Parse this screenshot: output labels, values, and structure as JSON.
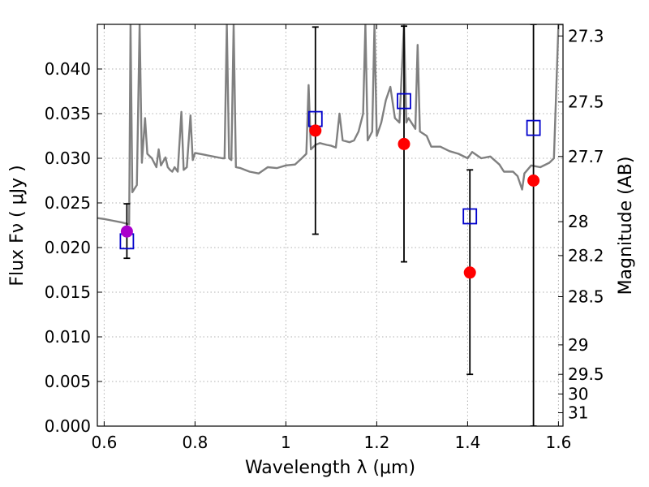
{
  "chart_data": {
    "type": "scatter",
    "xlabel": "Wavelength  λ (μm)",
    "ylabel": "Flux  Fν  ( μJy )",
    "y2label": "Magnitude (AB)",
    "xlim": [
      0.585,
      1.61
    ],
    "ylim": [
      0.0,
      0.045
    ],
    "grid": true,
    "x_ticks": [
      0.6,
      0.8,
      1.0,
      1.2,
      1.4,
      1.6
    ],
    "x_tick_labels": [
      "0.6",
      "0.8",
      "1",
      "1.2",
      "1.4",
      "1.6"
    ],
    "y_ticks": [
      0.0,
      0.005,
      0.01,
      0.015,
      0.02,
      0.025,
      0.03,
      0.035,
      0.04
    ],
    "y_tick_labels": [
      "0.000",
      "0.005",
      "0.010",
      "0.015",
      "0.020",
      "0.025",
      "0.030",
      "0.035",
      "0.040"
    ],
    "mag_ticks": [
      {
        "label": "27.3",
        "flux": 0.0437
      },
      {
        "label": "27.5",
        "flux": 0.0363
      },
      {
        "label": "27.7",
        "flux": 0.0302
      },
      {
        "label": "28",
        "flux": 0.0229
      },
      {
        "label": "28.2",
        "flux": 0.0191
      },
      {
        "label": "28.5",
        "flux": 0.0145
      },
      {
        "label": "29",
        "flux": 0.0091
      },
      {
        "label": "29.5",
        "flux": 0.0058
      },
      {
        "label": "30",
        "flux": 0.0036
      },
      {
        "label": "31",
        "flux": 0.0015
      }
    ],
    "colors": {
      "observed": "#ff0000",
      "observed_first": "#aa00cc",
      "model": "#0000cc",
      "spectrum": "#808080",
      "errorbar": "#000000",
      "grid": "#b0b0b0"
    },
    "series": [
      {
        "marker": "filled-circle",
        "points": [
          {
            "x": 0.65,
            "y": 0.0218,
            "err_low": 0.0188,
            "err_high": 0.0249
          },
          {
            "x": 1.065,
            "y": 0.0331,
            "err_low": 0.0215,
            "err_high": 0.0447
          },
          {
            "x": 1.26,
            "y": 0.0316,
            "err_low": 0.0184,
            "err_high": 0.0448
          },
          {
            "x": 1.405,
            "y": 0.0172,
            "err_low": 0.0058,
            "err_high": 0.0287
          },
          {
            "x": 1.545,
            "y": 0.0275,
            "err_low": 0.0,
            "err_high": 0.045
          }
        ]
      },
      {
        "marker": "open-square",
        "points": [
          {
            "x": 0.65,
            "y": 0.0207
          },
          {
            "x": 1.065,
            "y": 0.0344
          },
          {
            "x": 1.26,
            "y": 0.0364
          },
          {
            "x": 1.405,
            "y": 0.0235
          },
          {
            "x": 1.545,
            "y": 0.0334
          }
        ]
      },
      {
        "marker": "line",
        "points": [
          [
            0.585,
            0.0233
          ],
          [
            0.6,
            0.0232
          ],
          [
            0.62,
            0.023
          ],
          [
            0.64,
            0.0228
          ],
          [
            0.655,
            0.0226
          ],
          [
            0.658,
            0.045
          ],
          [
            0.662,
            0.0262
          ],
          [
            0.667,
            0.0266
          ],
          [
            0.672,
            0.027
          ],
          [
            0.678,
            0.045
          ],
          [
            0.683,
            0.0295
          ],
          [
            0.69,
            0.0345
          ],
          [
            0.695,
            0.0305
          ],
          [
            0.705,
            0.03
          ],
          [
            0.715,
            0.029
          ],
          [
            0.72,
            0.031
          ],
          [
            0.725,
            0.0292
          ],
          [
            0.735,
            0.0301
          ],
          [
            0.74,
            0.029
          ],
          [
            0.745,
            0.0287
          ],
          [
            0.75,
            0.0285
          ],
          [
            0.755,
            0.029
          ],
          [
            0.762,
            0.0285
          ],
          [
            0.77,
            0.0352
          ],
          [
            0.775,
            0.0287
          ],
          [
            0.782,
            0.029
          ],
          [
            0.79,
            0.0348
          ],
          [
            0.795,
            0.0298
          ],
          [
            0.8,
            0.0306
          ],
          [
            0.82,
            0.0304
          ],
          [
            0.84,
            0.0302
          ],
          [
            0.86,
            0.03
          ],
          [
            0.865,
            0.03
          ],
          [
            0.87,
            0.045
          ],
          [
            0.875,
            0.03
          ],
          [
            0.88,
            0.0298
          ],
          [
            0.885,
            0.045
          ],
          [
            0.89,
            0.029
          ],
          [
            0.9,
            0.0289
          ],
          [
            0.92,
            0.0285
          ],
          [
            0.94,
            0.0283
          ],
          [
            0.96,
            0.029
          ],
          [
            0.98,
            0.0289
          ],
          [
            1.0,
            0.0292
          ],
          [
            1.02,
            0.0293
          ],
          [
            1.035,
            0.03
          ],
          [
            1.045,
            0.0305
          ],
          [
            1.05,
            0.0382
          ],
          [
            1.055,
            0.031
          ],
          [
            1.065,
            0.0315
          ],
          [
            1.075,
            0.0317
          ],
          [
            1.09,
            0.0315
          ],
          [
            1.1,
            0.0314
          ],
          [
            1.11,
            0.0312
          ],
          [
            1.118,
            0.035
          ],
          [
            1.125,
            0.032
          ],
          [
            1.14,
            0.0318
          ],
          [
            1.15,
            0.032
          ],
          [
            1.16,
            0.033
          ],
          [
            1.17,
            0.035
          ],
          [
            1.175,
            0.045
          ],
          [
            1.18,
            0.032
          ],
          [
            1.19,
            0.033
          ],
          [
            1.195,
            0.045
          ],
          [
            1.2,
            0.0325
          ],
          [
            1.21,
            0.034
          ],
          [
            1.22,
            0.0365
          ],
          [
            1.23,
            0.038
          ],
          [
            1.24,
            0.0345
          ],
          [
            1.25,
            0.034
          ],
          [
            1.26,
            0.045
          ],
          [
            1.265,
            0.034
          ],
          [
            1.27,
            0.0345
          ],
          [
            1.285,
            0.0333
          ],
          [
            1.29,
            0.0427
          ],
          [
            1.295,
            0.033
          ],
          [
            1.31,
            0.0325
          ],
          [
            1.32,
            0.0313
          ],
          [
            1.34,
            0.0313
          ],
          [
            1.36,
            0.0308
          ],
          [
            1.38,
            0.0305
          ],
          [
            1.4,
            0.03
          ],
          [
            1.41,
            0.0307
          ],
          [
            1.43,
            0.03
          ],
          [
            1.45,
            0.0302
          ],
          [
            1.47,
            0.0293
          ],
          [
            1.48,
            0.0285
          ],
          [
            1.5,
            0.0285
          ],
          [
            1.51,
            0.028
          ],
          [
            1.52,
            0.0265
          ],
          [
            1.525,
            0.0283
          ],
          [
            1.54,
            0.0292
          ],
          [
            1.55,
            0.0291
          ],
          [
            1.56,
            0.029
          ],
          [
            1.58,
            0.0295
          ],
          [
            1.59,
            0.03
          ],
          [
            1.6,
            0.045
          ],
          [
            1.61,
            0.045
          ]
        ]
      }
    ]
  }
}
